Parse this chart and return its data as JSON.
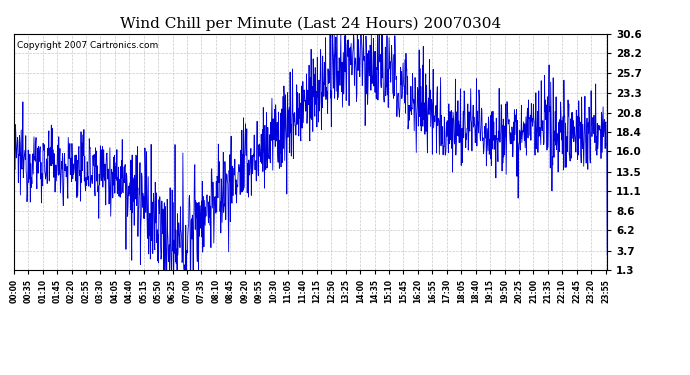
{
  "title": "Wind Chill per Minute (Last 24 Hours) 20070304",
  "copyright": "Copyright 2007 Cartronics.com",
  "line_color": "#0000DD",
  "background_color": "#ffffff",
  "plot_bg_color": "#ffffff",
  "yticks": [
    1.3,
    3.7,
    6.2,
    8.6,
    11.1,
    13.5,
    16.0,
    18.4,
    20.8,
    23.3,
    25.7,
    28.2,
    30.6
  ],
  "ymin": 1.3,
  "ymax": 30.6,
  "grid_color": "#bbbbbb",
  "xtick_interval": 35,
  "figwidth": 6.9,
  "figheight": 3.75,
  "dpi": 100
}
